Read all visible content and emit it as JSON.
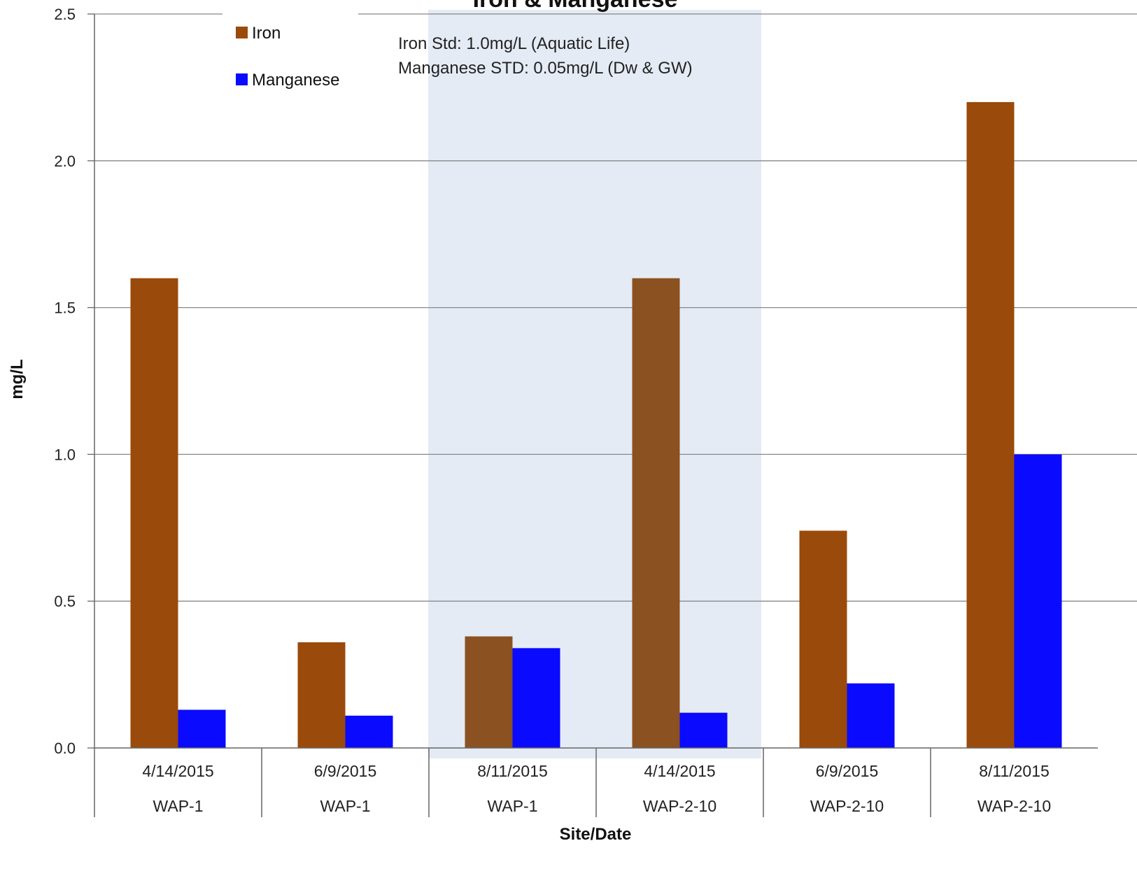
{
  "chart_data": {
    "type": "bar",
    "title": "Iron & Manganese",
    "xlabel": "Site/Date",
    "ylabel": "mg/L",
    "ylim": [
      0,
      2.5
    ],
    "yticks": [
      "0.0",
      "0.5",
      "1.0",
      "1.5",
      "2.0",
      "2.5"
    ],
    "grid": true,
    "legend_position": "top-left",
    "categories": [
      {
        "date": "4/14/2015",
        "site": "WAP-1"
      },
      {
        "date": "6/9/2015",
        "site": "WAP-1"
      },
      {
        "date": "8/11/2015",
        "site": "WAP-1"
      },
      {
        "date": "4/14/2015",
        "site": "WAP-2-10"
      },
      {
        "date": "6/9/2015",
        "site": "WAP-2-10"
      },
      {
        "date": "8/11/2015",
        "site": "WAP-2-10"
      }
    ],
    "series": [
      {
        "name": "Iron",
        "color": "#9a4a0a",
        "values": [
          1.6,
          0.36,
          0.38,
          1.6,
          0.74,
          2.2
        ]
      },
      {
        "name": "Manganese",
        "color": "#0a0aff",
        "values": [
          0.13,
          0.11,
          0.34,
          0.12,
          0.22,
          1.0
        ]
      }
    ],
    "highlight": {
      "from_category": 2,
      "to_category": 3,
      "color": "#e4ebf5"
    },
    "annotations": [
      "Iron Std: 1.0mg/L (Aquatic Life)",
      "Manganese STD: 0.05mg/L (Dw & GW)"
    ]
  }
}
